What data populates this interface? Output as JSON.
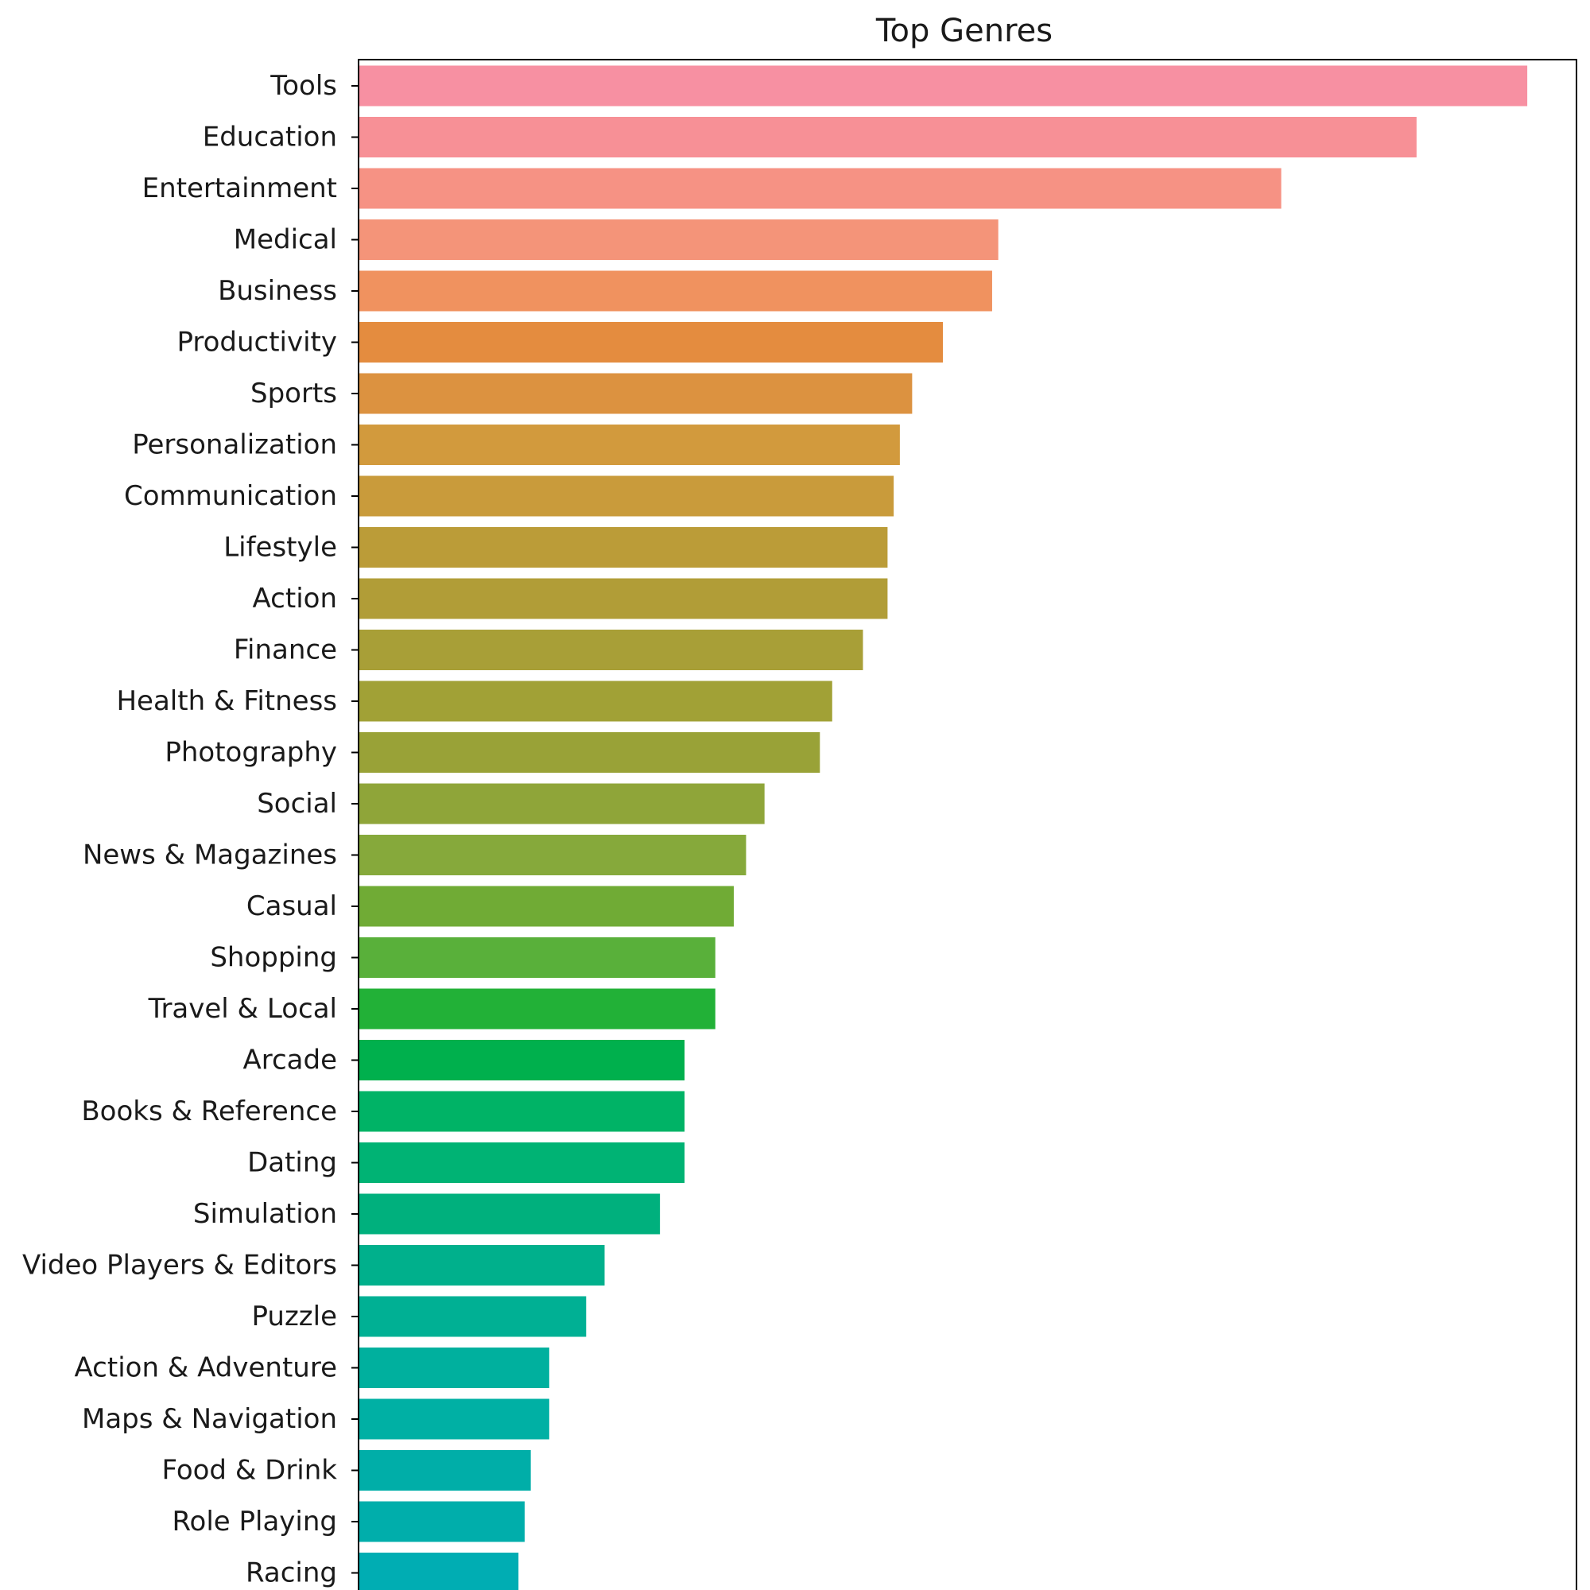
{
  "chart_data": {
    "type": "bar",
    "orientation": "horizontal",
    "title": "Top Genres",
    "xlabel": "",
    "ylabel": "",
    "xlim": [
      0,
      19.8
    ],
    "grid": false,
    "legend": "none",
    "categories": [
      "Tools",
      "Education",
      "Entertainment",
      "Medical",
      "Business",
      "Productivity",
      "Sports",
      "Personalization",
      "Communication",
      "Lifestyle",
      "Action",
      "Finance",
      "Health & Fitness",
      "Photography",
      "Social",
      "News & Magazines",
      "Casual",
      "Shopping",
      "Travel & Local",
      "Arcade",
      "Books & Reference",
      "Dating",
      "Simulation",
      "Video Players & Editors",
      "Puzzle",
      "Action & Adventure",
      "Maps & Navigation",
      "Food & Drink",
      "Role Playing",
      "Racing"
    ],
    "values": [
      19.0,
      17.2,
      15.0,
      10.4,
      10.3,
      9.5,
      9.0,
      8.8,
      8.7,
      8.6,
      8.6,
      8.2,
      7.7,
      7.5,
      6.6,
      6.3,
      6.1,
      5.8,
      5.8,
      5.3,
      5.3,
      5.3,
      4.9,
      4.0,
      3.7,
      3.1,
      3.1,
      2.8,
      2.7,
      2.6
    ],
    "colors": [
      "#f790a2",
      "#f79096",
      "#f69284",
      "#f49479",
      "#f0925f",
      "#e48c3f",
      "#dc9240",
      "#d29a3d",
      "#c99b3b",
      "#bb9c38",
      "#b19d37",
      "#a89f37",
      "#a1a136",
      "#99a237",
      "#8fa539",
      "#86a93b",
      "#70ab35",
      "#59b03a",
      "#22b137",
      "#00b04d",
      "#00b366",
      "#00b374",
      "#00b07d",
      "#00b08c",
      "#00b094",
      "#00b09e",
      "#00b0a4",
      "#00aea8",
      "#00aeab",
      "#00adb3"
    ]
  }
}
